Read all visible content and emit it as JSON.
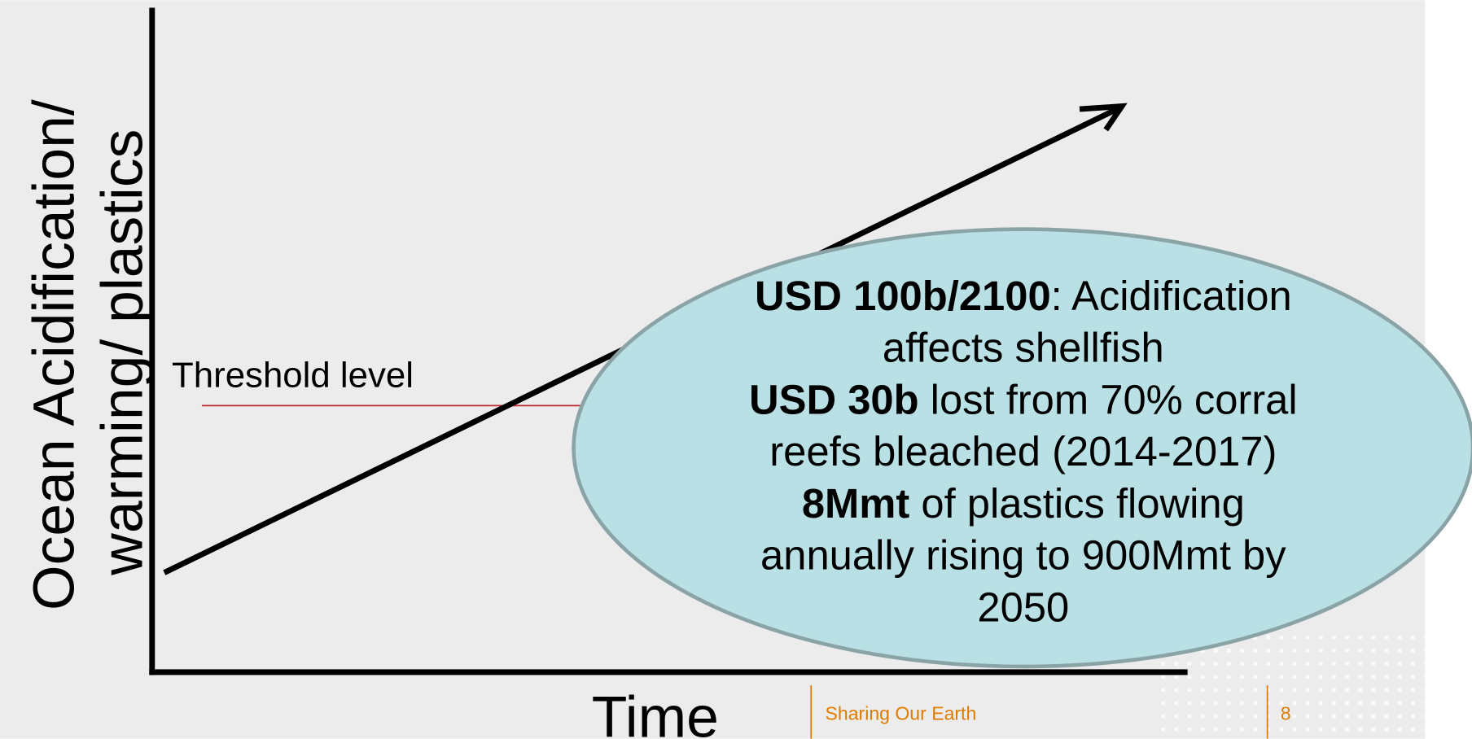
{
  "y_axis_label": [
    "Ocean Acidification/",
    "warming/ plastics"
  ],
  "x_axis_label": "Time",
  "threshold_label": "Threshold level",
  "callout": {
    "lines": [
      [
        {
          "text": "USD 100b/2100",
          "bold": true
        },
        {
          "text": ": Acidification"
        }
      ],
      [
        {
          "text": "affects shellfish"
        }
      ],
      [
        {
          "text": "USD 30b",
          "bold": true
        },
        {
          "text": " lost from 70% corral"
        }
      ],
      [
        {
          "text": "reefs bleached (2014-2017)"
        }
      ],
      [
        {
          "text": "8Mmt",
          "bold": true
        },
        {
          "text": " of plastics flowing"
        }
      ],
      [
        {
          "text": "annually rising to 900Mmt by"
        }
      ],
      [
        {
          "text": "2050"
        }
      ]
    ]
  },
  "footer": {
    "text": "Sharing Our Earth",
    "page": "8"
  }
}
